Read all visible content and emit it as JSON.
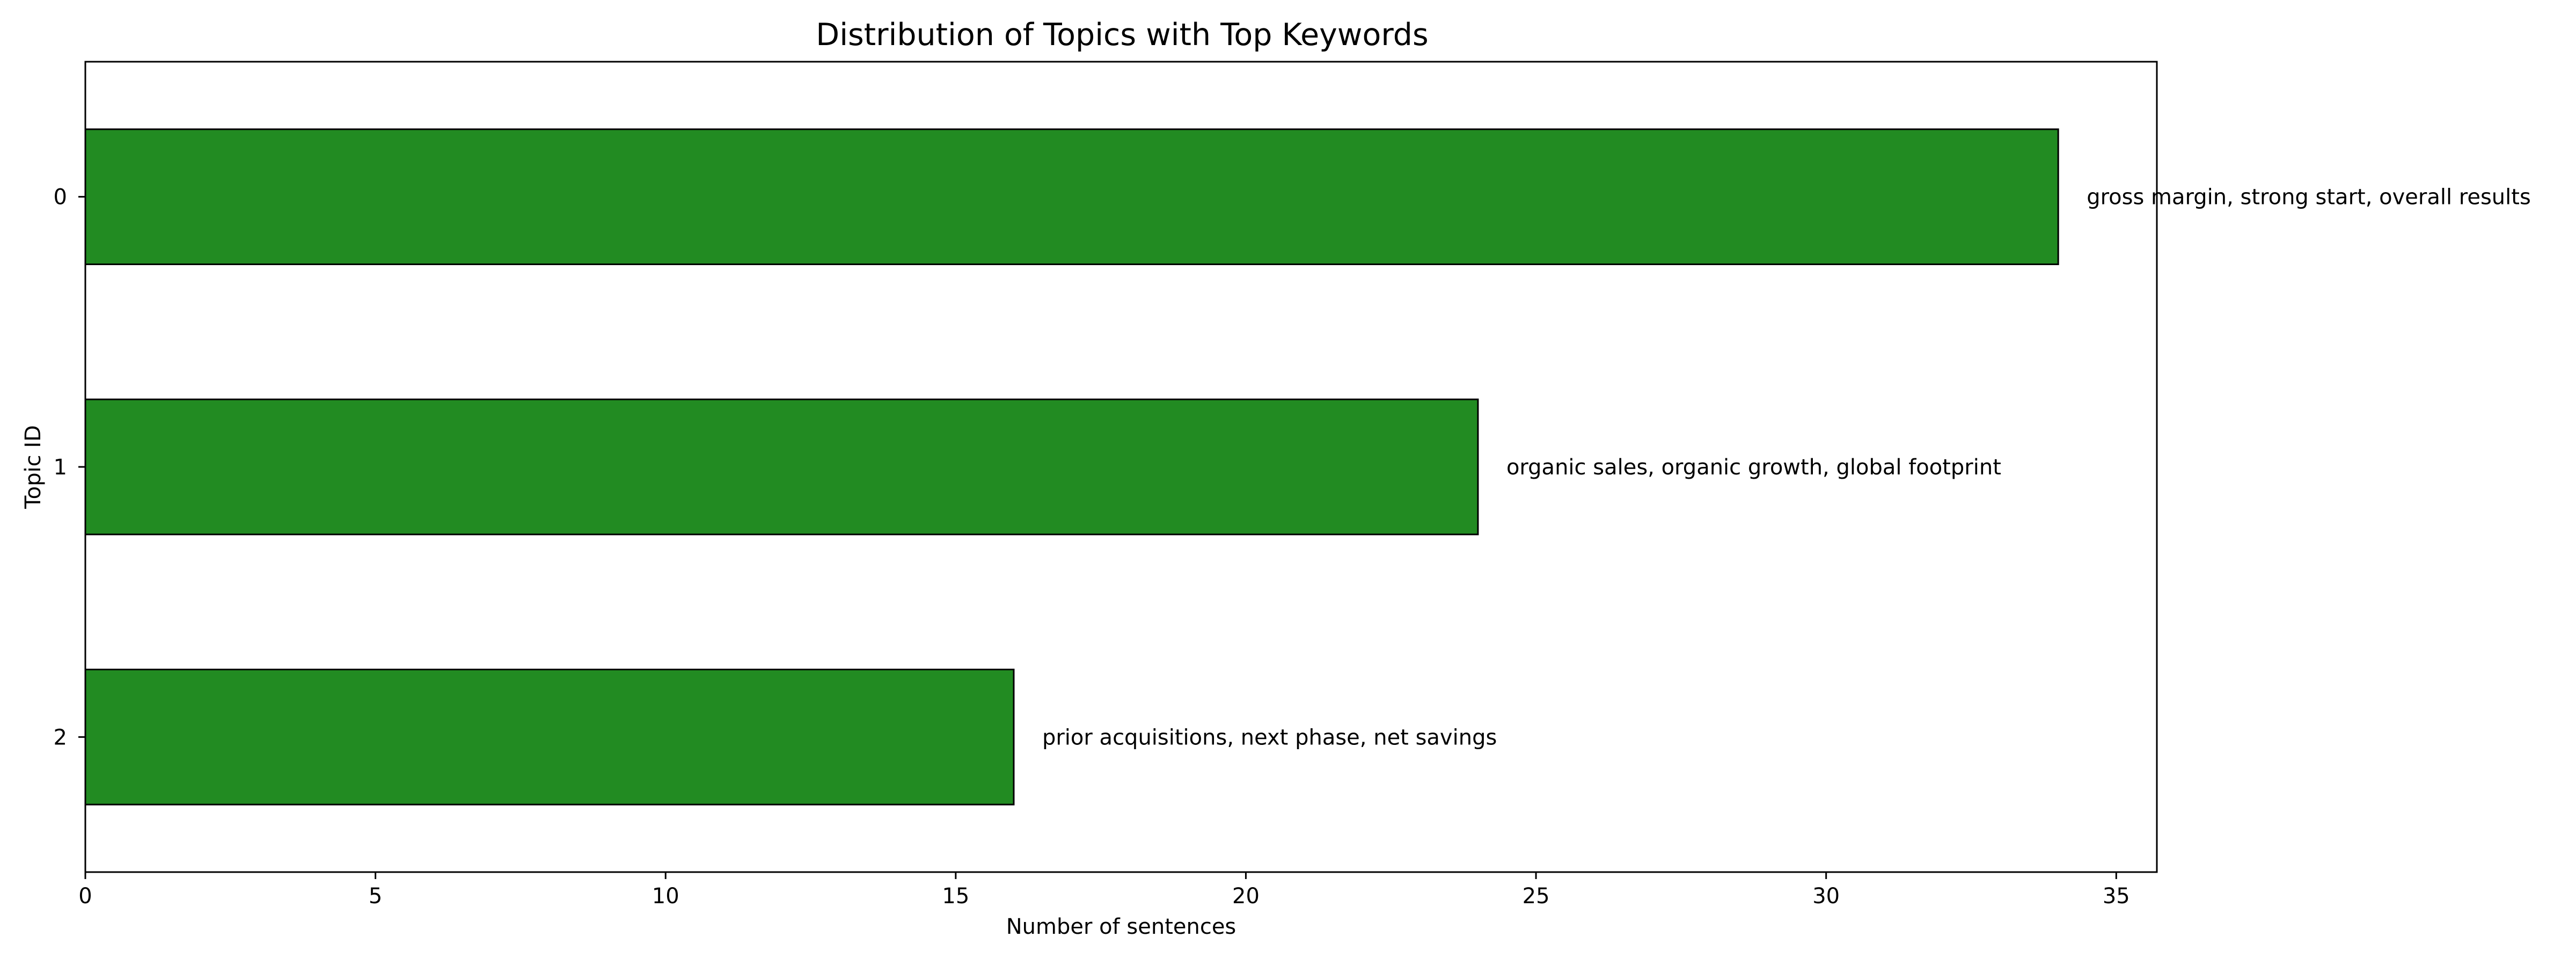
{
  "chart_data": {
    "type": "bar",
    "orientation": "horizontal",
    "title": "Distribution of Topics with Top Keywords",
    "xlabel": "Number of sentences",
    "ylabel": "Topic ID",
    "categories": [
      "0",
      "1",
      "2"
    ],
    "values": [
      34,
      24,
      16
    ],
    "annotations": [
      "gross margin, strong start, overall results",
      "organic sales, organic growth, global footprint",
      "prior acquisitions, next phase, net savings"
    ],
    "xlim": [
      0,
      35.7
    ],
    "xticks": [
      0,
      5,
      10,
      15,
      20,
      25,
      30,
      35
    ],
    "grid": false,
    "legend": "none",
    "bar_color": "#228b22",
    "edge_color": "#000000"
  }
}
